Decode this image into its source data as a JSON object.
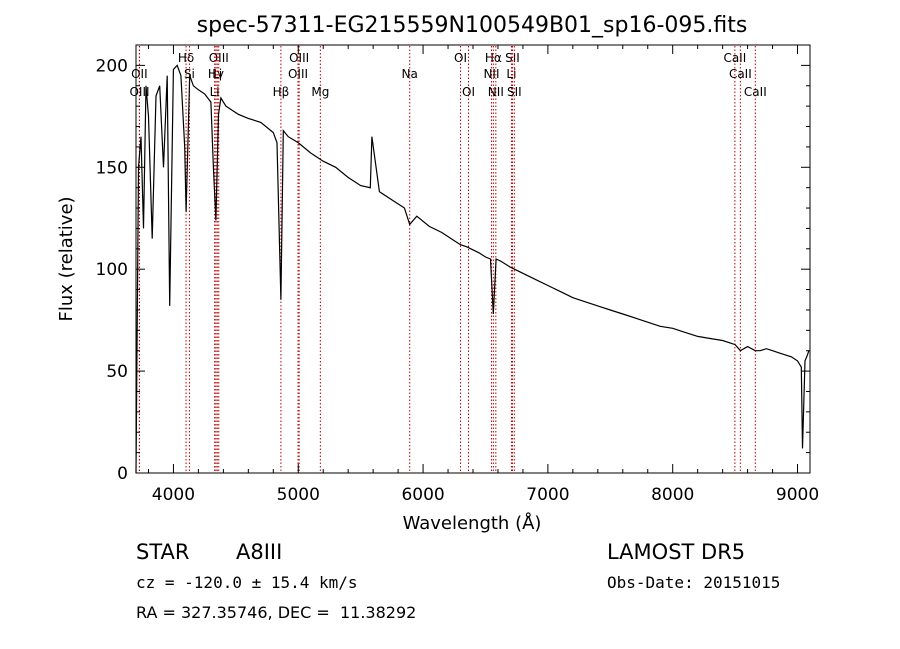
{
  "chart_data": {
    "type": "line",
    "title": "spec-57311-EG215559N100549B01_sp16-095.fits",
    "xlabel": "Wavelength (Å)",
    "ylabel": "Flux (relative)",
    "xlim": [
      3700,
      9100
    ],
    "ylim": [
      0,
      210
    ],
    "xticks": [
      4000,
      5000,
      6000,
      7000,
      8000,
      9000
    ],
    "yticks": [
      0,
      50,
      100,
      150,
      200
    ],
    "grid": false,
    "line_color": "#000000",
    "marker_color": "#c00000",
    "spectrum": {
      "x": [
        3700,
        3720,
        3740,
        3760,
        3780,
        3800,
        3830,
        3860,
        3890,
        3920,
        3950,
        3970,
        4000,
        4030,
        4060,
        4090,
        4101,
        4130,
        4160,
        4200,
        4250,
        4300,
        4320,
        4340,
        4361,
        4380,
        4420,
        4470,
        4520,
        4600,
        4700,
        4800,
        4830,
        4861,
        4880,
        4920,
        5000,
        5100,
        5200,
        5300,
        5400,
        5500,
        5577,
        5590,
        5650,
        5750,
        5850,
        5893,
        5950,
        6050,
        6150,
        6250,
        6300,
        6350,
        6450,
        6500,
        6540,
        6563,
        6585,
        6620,
        6700,
        6800,
        6900,
        7000,
        7100,
        7200,
        7300,
        7400,
        7500,
        7600,
        7700,
        7800,
        7900,
        8000,
        8100,
        8200,
        8300,
        8400,
        8500,
        8542,
        8600,
        8662,
        8700,
        8750,
        8800,
        8850,
        8900,
        8950,
        9000,
        9030,
        9040,
        9060,
        9080,
        9090
      ],
      "y": [
        0,
        150,
        165,
        120,
        190,
        175,
        115,
        185,
        190,
        150,
        195,
        82,
        198,
        200,
        195,
        160,
        128,
        195,
        190,
        188,
        186,
        182,
        150,
        124,
        176,
        184,
        180,
        178,
        176,
        174,
        172,
        167,
        162,
        85,
        168,
        165,
        162,
        157,
        153,
        150,
        145,
        141,
        140,
        165,
        138,
        134,
        130,
        122,
        126,
        121,
        118,
        114,
        112,
        111,
        108,
        106,
        105,
        78,
        105,
        104,
        101,
        98,
        95,
        92,
        89,
        86,
        84,
        82,
        80,
        78,
        76,
        74,
        72,
        71,
        69,
        67,
        66,
        65,
        63,
        60,
        62,
        60,
        60,
        61,
        60,
        59,
        58,
        57,
        55,
        52,
        12,
        55,
        58,
        60
      ]
    },
    "lines": [
      {
        "label": "Hδ",
        "x": 4101,
        "row": 1
      },
      {
        "label": "OII",
        "x": 3727,
        "row": 2
      },
      {
        "label": "OIII",
        "x": 3728,
        "row": 3
      },
      {
        "label": "Hγ",
        "x": 4340,
        "row": 2
      },
      {
        "label": "Si",
        "x": 4128,
        "row": 2
      },
      {
        "label": "OIII",
        "x": 4363,
        "row": 1
      },
      {
        "label": "Li",
        "x": 4351,
        "row": 2
      },
      {
        "label": "Li",
        "x": 4330,
        "row": 3
      },
      {
        "label": "Hβ",
        "x": 4861,
        "row": 3
      },
      {
        "label": "OIII",
        "x": 5007,
        "row": 1
      },
      {
        "label": "OIII",
        "x": 4998,
        "row": 2
      },
      {
        "label": "Mg",
        "x": 5177,
        "row": 3
      },
      {
        "label": "Na",
        "x": 5893,
        "row": 2
      },
      {
        "label": "OI",
        "x": 6300,
        "row": 1
      },
      {
        "label": "OI",
        "x": 6364,
        "row": 3
      },
      {
        "label": "Hα",
        "x": 6563,
        "row": 1
      },
      {
        "label": "NII",
        "x": 6548,
        "row": 2
      },
      {
        "label": "NII",
        "x": 6583,
        "row": 3
      },
      {
        "label": "SII",
        "x": 6716,
        "row": 1
      },
      {
        "label": "Li",
        "x": 6708,
        "row": 2
      },
      {
        "label": "SII",
        "x": 6731,
        "row": 3
      },
      {
        "label": "CaII",
        "x": 8498,
        "row": 1
      },
      {
        "label": "CaII",
        "x": 8542,
        "row": 2
      },
      {
        "label": "CaII",
        "x": 8662,
        "row": 3
      }
    ]
  },
  "footer": {
    "object_type": "STAR",
    "subclass": "A8III",
    "survey": "LAMOST DR5",
    "velocity": "cz = -120.0 ± 15.4 km/s",
    "obs_date": "Obs-Date: 20151015",
    "coords": "RA = 327.35746, DEC =  11.38292"
  }
}
